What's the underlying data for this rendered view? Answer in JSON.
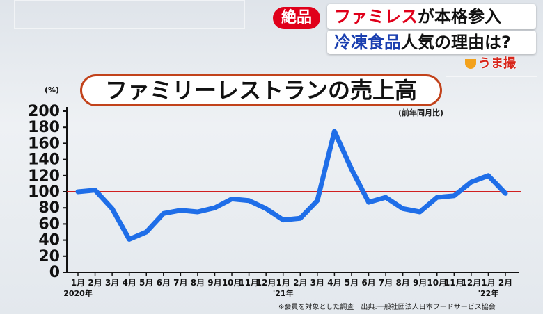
{
  "header": {
    "badge": "絶品",
    "line1_red": "ファミレス",
    "line1_black": "が本格参入",
    "line2_blue": "冷凍食品",
    "line2_black": "人気の理由は?",
    "logo_text": "うま撮"
  },
  "chart_data": {
    "type": "line",
    "title": "ファミリーレストランの売上高",
    "note": "(前年同月比)",
    "ylabel": "(%)",
    "ylim": [
      0,
      200
    ],
    "yticks": [
      0,
      20,
      40,
      60,
      80,
      100,
      120,
      140,
      160,
      180,
      200
    ],
    "reference_line": 100,
    "categories": [
      "1月",
      "2月",
      "3月",
      "4月",
      "5月",
      "6月",
      "7月",
      "8月",
      "9月",
      "10月",
      "11月",
      "12月",
      "1月",
      "2月",
      "3月",
      "4月",
      "5月",
      "6月",
      "7月",
      "8月",
      "9月",
      "10月",
      "11月",
      "12月",
      "1月",
      "2月"
    ],
    "year_labels": [
      {
        "index": 0,
        "text": "2020年"
      },
      {
        "index": 12,
        "text": "'21年"
      },
      {
        "index": 24,
        "text": "'22年"
      }
    ],
    "values": [
      100,
      102,
      79,
      41,
      50,
      73,
      77,
      75,
      80,
      91,
      89,
      79,
      65,
      67,
      89,
      175,
      128,
      87,
      93,
      79,
      75,
      93,
      95,
      112,
      120,
      98
    ],
    "colors": {
      "line": "#1f6ee8",
      "reference": "#d02020"
    },
    "source": "※会員を対象とした調査　出典:一般社団法人日本フードサービス協会"
  }
}
